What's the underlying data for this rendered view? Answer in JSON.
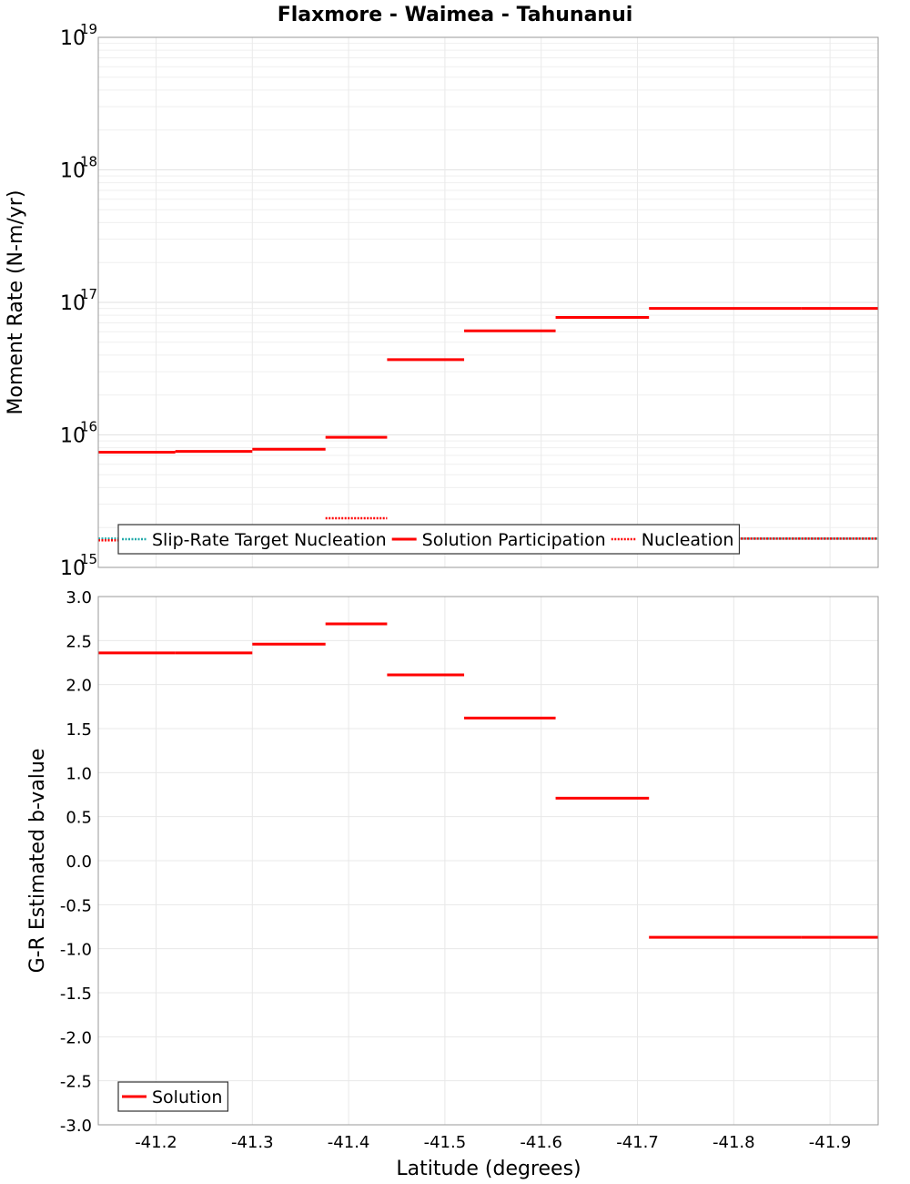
{
  "chart_data": [
    {
      "type": "line",
      "title": "Flaxmore - Waimea - Tahunanui",
      "xlabel": "",
      "ylabel": "Moment Rate (N-m/yr)",
      "yscale": "log",
      "ylim": [
        1000000000000000.0,
        1e+19
      ],
      "xlim": [
        -41.14,
        -41.95
      ],
      "y_ticks": [
        {
          "base": "10",
          "exp": "15"
        },
        {
          "base": "10",
          "exp": "16"
        },
        {
          "base": "10",
          "exp": "17"
        },
        {
          "base": "10",
          "exp": "18"
        },
        {
          "base": "10",
          "exp": "19"
        }
      ],
      "series": [
        {
          "name": "Slip-Rate Target Nucleation",
          "color": "#22aaaa",
          "style": "dotted",
          "segments": [
            {
              "x0": -41.14,
              "x1": -41.95,
              "y": 1650000000000000.0
            }
          ]
        },
        {
          "name": "Solution Participation",
          "color": "#ff0000",
          "style": "solid",
          "segments": [
            {
              "x0": -41.14,
              "x1": -41.22,
              "y": 7400000000000000.0
            },
            {
              "x0": -41.22,
              "x1": -41.3,
              "y": 7500000000000000.0
            },
            {
              "x0": -41.3,
              "x1": -41.376,
              "y": 7800000000000000.0
            },
            {
              "x0": -41.376,
              "x1": -41.44,
              "y": 9600000000000000.0
            },
            {
              "x0": -41.44,
              "x1": -41.52,
              "y": 3.7e+16
            },
            {
              "x0": -41.52,
              "x1": -41.615,
              "y": 6.1e+16
            },
            {
              "x0": -41.615,
              "x1": -41.712,
              "y": 7.7e+16
            },
            {
              "x0": -41.712,
              "x1": -41.87,
              "y": 9e+16
            },
            {
              "x0": -41.87,
              "x1": -41.95,
              "y": 9e+16
            }
          ]
        },
        {
          "name": "Nucleation",
          "color": "#ff0000",
          "style": "dotted",
          "segments": [
            {
              "x0": -41.14,
              "x1": -41.376,
              "y": 1600000000000000.0
            },
            {
              "x0": -41.376,
              "x1": -41.44,
              "y": 2350000000000000.0
            },
            {
              "x0": -41.44,
              "x1": -41.95,
              "y": 1650000000000000.0
            }
          ]
        }
      ],
      "legend": {
        "placement": "bottom-left",
        "entries": [
          "Slip-Rate Target Nucleation",
          "Solution Participation",
          "Nucleation"
        ]
      }
    },
    {
      "type": "line",
      "title": "",
      "xlabel": "Latitude (degrees)",
      "ylabel": "G-R Estimated b-value",
      "ylim": [
        -3.0,
        3.0
      ],
      "xlim": [
        -41.14,
        -41.95
      ],
      "x_ticks": [
        -41.2,
        -41.3,
        -41.4,
        -41.5,
        -41.6,
        -41.7,
        -41.8,
        -41.9
      ],
      "x_tick_labels": [
        "-41.2",
        "-41.3",
        "-41.4",
        "-41.5",
        "-41.6",
        "-41.7",
        "-41.8",
        "-41.9"
      ],
      "y_ticks": [
        3.0,
        2.5,
        2.0,
        1.5,
        1.0,
        0.5,
        0.0,
        -0.5,
        -1.0,
        -1.5,
        -2.0,
        -2.5,
        -3.0
      ],
      "y_tick_labels": [
        "3.0",
        "2.5",
        "2.0",
        "1.5",
        "1.0",
        "0.5",
        "0.0",
        "-0.5",
        "-1.0",
        "-1.5",
        "-2.0",
        "-2.5",
        "-3.0"
      ],
      "series": [
        {
          "name": "Solution",
          "color": "#ff0000",
          "style": "solid",
          "segments": [
            {
              "x0": -41.14,
              "x1": -41.22,
              "y": 2.36
            },
            {
              "x0": -41.22,
              "x1": -41.3,
              "y": 2.36
            },
            {
              "x0": -41.3,
              "x1": -41.376,
              "y": 2.46
            },
            {
              "x0": -41.376,
              "x1": -41.44,
              "y": 2.69
            },
            {
              "x0": -41.44,
              "x1": -41.52,
              "y": 2.11
            },
            {
              "x0": -41.52,
              "x1": -41.615,
              "y": 1.62
            },
            {
              "x0": -41.615,
              "x1": -41.712,
              "y": 0.71
            },
            {
              "x0": -41.712,
              "x1": -41.87,
              "y": -0.87
            },
            {
              "x0": -41.87,
              "x1": -41.95,
              "y": -0.87
            }
          ]
        }
      ],
      "legend": {
        "placement": "bottom-left",
        "entries": [
          "Solution"
        ]
      }
    }
  ]
}
